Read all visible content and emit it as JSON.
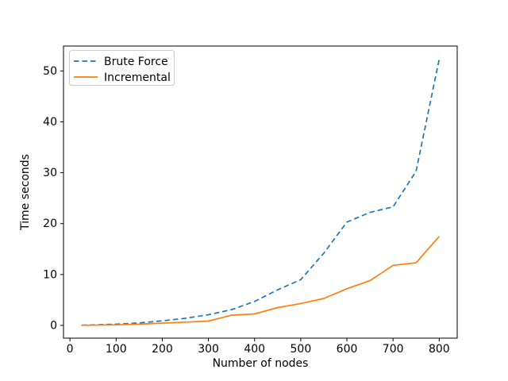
{
  "chart_data": {
    "type": "line",
    "title": "",
    "xlabel": "Number of nodes",
    "ylabel": "Time seconds",
    "x": [
      25,
      50,
      100,
      150,
      200,
      250,
      300,
      350,
      400,
      450,
      500,
      550,
      600,
      650,
      700,
      750,
      800
    ],
    "series": [
      {
        "name": "Brute Force",
        "color": "#1f77b4",
        "style": "dashed",
        "values": [
          0.05,
          0.1,
          0.25,
          0.5,
          0.9,
          1.4,
          2.1,
          3.1,
          4.7,
          7.0,
          9.0,
          14.2,
          20.3,
          22.2,
          23.3,
          30.3,
          52.3
        ]
      },
      {
        "name": "Incremental",
        "color": "#ff7f0e",
        "style": "solid",
        "values": [
          0.03,
          0.06,
          0.12,
          0.25,
          0.45,
          0.65,
          0.85,
          2.0,
          2.25,
          3.5,
          4.3,
          5.3,
          7.2,
          8.8,
          11.8,
          12.3,
          17.5
        ]
      }
    ],
    "xticks": [
      0,
      100,
      200,
      300,
      400,
      500,
      600,
      700,
      800
    ],
    "yticks": [
      0,
      10,
      20,
      30,
      40,
      50
    ],
    "xlim": [
      -14,
      839
    ],
    "ylim": [
      -2.5,
      54.9
    ],
    "grid": false,
    "legend_position": "upper left",
    "background_color": "#ffffff",
    "axis_color": "#000000",
    "legend_border_color": "#cccccc"
  }
}
